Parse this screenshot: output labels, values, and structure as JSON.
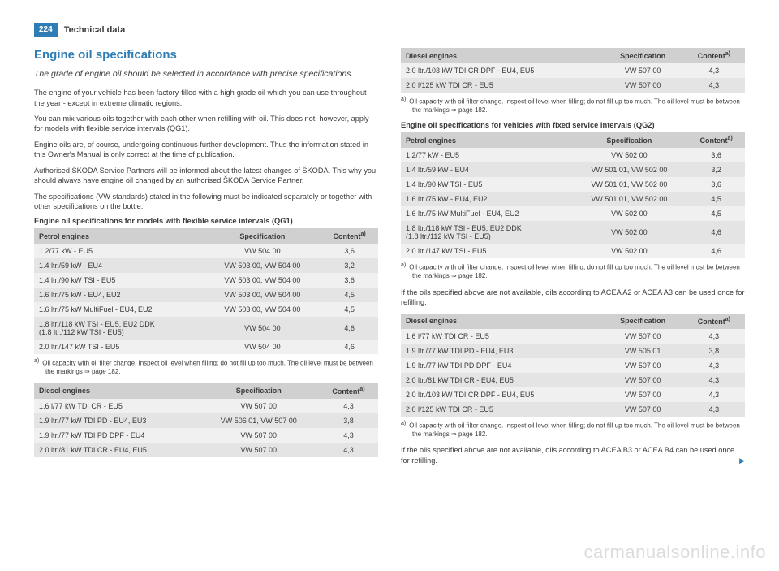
{
  "header": {
    "page_number": "224",
    "section": "Technical data"
  },
  "left": {
    "title": "Engine oil specifications",
    "subtitle": "The grade of engine oil should be selected in accordance with precise specifications.",
    "paras": [
      "The engine of your vehicle has been factory-filled with a high-grade oil which you can use throughout the year - except in extreme climatic regions.",
      "You can mix various oils together with each other when refilling with oil. This does not, however, apply for models with flexible service intervals (QG1).",
      "Engine oils are, of course, undergoing continuous further development. Thus the information stated in this Owner's Manual is only correct at the time of publication.",
      "Authorised ŠKODA Service Partners will be informed about the latest changes of ŠKODA. This why you should always have engine oil changed by an authorised ŠKODA Service Partner.",
      "The specifications (VW standards) stated in the following must be indicated separately or together with other specifications on the bottle."
    ],
    "caption_qg1": "Engine oil specifications for models with flexible service intervals (QG1)",
    "table_petrol_qg1": {
      "columns": [
        "Petrol engines",
        "Specification",
        "Contentª⁾"
      ],
      "rows": [
        [
          "1.2/77 kW - EU5",
          "VW 504 00",
          "3,6"
        ],
        [
          "1.4 ltr./59 kW - EU4",
          "VW 503 00, VW 504 00",
          "3,2"
        ],
        [
          "1.4 ltr./90 kW TSI - EU5",
          "VW 503 00, VW 504 00",
          "3,6"
        ],
        [
          "1.6 ltr./75 kW - EU4, EU2",
          "VW 503 00, VW 504 00",
          "4,5"
        ],
        [
          "1.6 ltr./75 kW MultiFuel - EU4, EU2",
          "VW 503 00, VW 504 00",
          "4,5"
        ],
        [
          "1.8 ltr./118 kW TSI - EU5, EU2 DDK\n(1.8 ltr./112 kW TSI - EU5)",
          "VW 504 00",
          "4,6"
        ],
        [
          "2.0 ltr./147 kW TSI - EU5",
          "VW 504 00",
          "4,6"
        ]
      ]
    },
    "footnote": "Oil capacity with oil filter change. Inspect oil level when filling; do not fill up too much. The oil level must be between the markings ⇒ page 182.",
    "table_diesel_qg1a": {
      "columns": [
        "Diesel engines",
        "Specification",
        "Contentª⁾"
      ],
      "rows": [
        [
          "1.6 l/77 kW TDI CR - EU5",
          "VW 507 00",
          "4,3"
        ],
        [
          "1.9 ltr./77 kW TDI PD - EU4, EU3",
          "VW 506 01, VW 507 00",
          "3,8"
        ],
        [
          "1.9 ltr./77 kW TDI PD DPF - EU4",
          "VW 507 00",
          "4,3"
        ],
        [
          "2.0 ltr./81 kW TDI CR - EU4, EU5",
          "VW 507 00",
          "4,3"
        ]
      ]
    }
  },
  "right": {
    "table_diesel_qg1b": {
      "columns": [
        "Diesel engines",
        "Specification",
        "Contentª⁾"
      ],
      "rows": [
        [
          "2.0 ltr./103 kW TDI CR DPF - EU4, EU5",
          "VW 507 00",
          "4,3"
        ],
        [
          "2.0 l/125 kW TDI CR - EU5",
          "VW 507 00",
          "4,3"
        ]
      ]
    },
    "footnote": "Oil capacity with oil filter change. Inspect oil level when filling; do not fill up too much. The oil level must be between the markings ⇒ page 182.",
    "caption_qg2": "Engine oil specifications for vehicles with fixed service intervals (QG2)",
    "table_petrol_qg2": {
      "columns": [
        "Petrol engines",
        "Specification",
        "Contentª⁾"
      ],
      "rows": [
        [
          "1.2/77 kW - EU5",
          "VW 502 00",
          "3,6"
        ],
        [
          "1.4 ltr./59 kW - EU4",
          "VW 501 01, VW 502 00",
          "3,2"
        ],
        [
          "1.4 ltr./90 kW TSI - EU5",
          "VW 501 01, VW 502 00",
          "3,6"
        ],
        [
          "1.6 ltr./75 kW - EU4, EU2",
          "VW 501 01, VW 502 00",
          "4,5"
        ],
        [
          "1.6 ltr./75 kW MultiFuel - EU4, EU2",
          "VW 502 00",
          "4,5"
        ],
        [
          "1.8 ltr./118 kW TSI - EU5, EU2 DDK\n(1.8 ltr./112 kW TSI - EU5)",
          "VW 502 00",
          "4,6"
        ],
        [
          "2.0 ltr./147 kW TSI - EU5",
          "VW 502 00",
          "4,6"
        ]
      ]
    },
    "note_a2a3": "If the oils specified above are not available, oils according to ACEA A2 or ACEA A3 can be used once for refilling.",
    "table_diesel_qg2": {
      "columns": [
        "Diesel engines",
        "Specification",
        "Contentª⁾"
      ],
      "rows": [
        [
          "1.6 l/77 kW TDI CR - EU5",
          "VW 507 00",
          "4,3"
        ],
        [
          "1.9 ltr./77 kW TDI PD - EU4, EU3",
          "VW 505 01",
          "3,8"
        ],
        [
          "1.9 ltr./77 kW TDI PD DPF - EU4",
          "VW 507 00",
          "4,3"
        ],
        [
          "2.0 ltr./81 kW TDI CR - EU4, EU5",
          "VW 507 00",
          "4,3"
        ],
        [
          "2.0 ltr./103 kW TDI CR DPF - EU4, EU5",
          "VW 507 00",
          "4,3"
        ],
        [
          "2.0 l/125 kW TDI CR - EU5",
          "VW 507 00",
          "4,3"
        ]
      ]
    },
    "note_b3b4": "If the oils specified above are not available, oils according to ACEA B3 or ACEA B4 can be used once for refilling."
  },
  "watermark": "carmanualsonline.info"
}
